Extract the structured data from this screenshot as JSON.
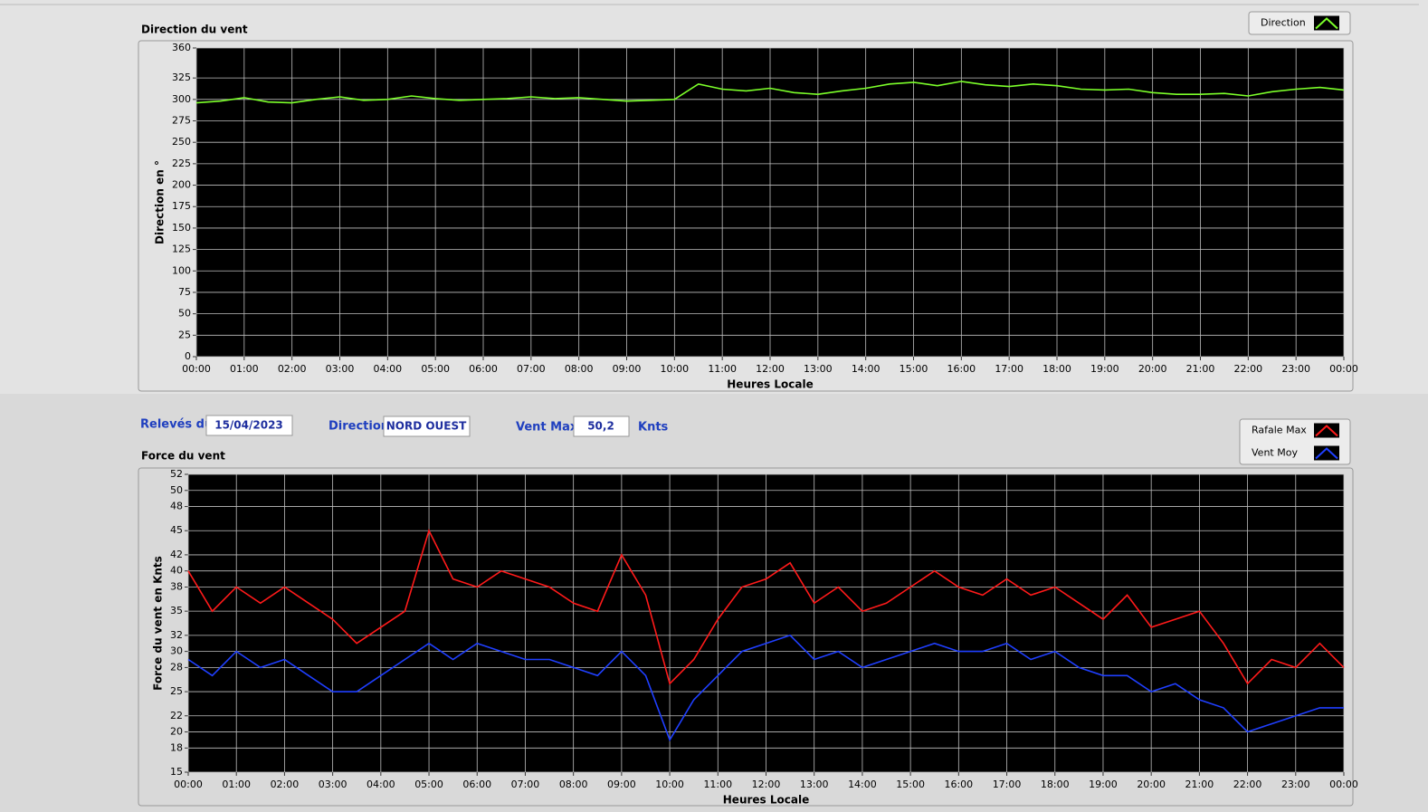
{
  "chart_data": [
    {
      "type": "line",
      "title": "Direction du vent",
      "y_label": "Direction en °",
      "x_label": "Heures Locale",
      "x": [
        0,
        0.5,
        1,
        1.5,
        2,
        2.5,
        3,
        3.5,
        4,
        4.5,
        5,
        5.5,
        6,
        6.5,
        7,
        7.5,
        8,
        8.5,
        9,
        9.5,
        10,
        10.5,
        11,
        11.5,
        12,
        12.5,
        13,
        13.5,
        14,
        14.5,
        15,
        15.5,
        16,
        16.5,
        17,
        17.5,
        18,
        18.5,
        19,
        19.5,
        20,
        20.5,
        21,
        21.5,
        22,
        22.5,
        23,
        23.5,
        24
      ],
      "xlim": [
        0,
        24
      ],
      "xticks": [
        {
          "value": 0,
          "label": "00:00"
        },
        {
          "value": 1,
          "label": "01:00"
        },
        {
          "value": 2,
          "label": "02:00"
        },
        {
          "value": 3,
          "label": "03:00"
        },
        {
          "value": 4,
          "label": "04:00"
        },
        {
          "value": 5,
          "label": "05:00"
        },
        {
          "value": 6,
          "label": "06:00"
        },
        {
          "value": 7,
          "label": "07:00"
        },
        {
          "value": 8,
          "label": "08:00"
        },
        {
          "value": 9,
          "label": "09:00"
        },
        {
          "value": 10,
          "label": "10:00"
        },
        {
          "value": 11,
          "label": "11:00"
        },
        {
          "value": 12,
          "label": "12:00"
        },
        {
          "value": 13,
          "label": "13:00"
        },
        {
          "value": 14,
          "label": "14:00"
        },
        {
          "value": 15,
          "label": "15:00"
        },
        {
          "value": 16,
          "label": "16:00"
        },
        {
          "value": 17,
          "label": "17:00"
        },
        {
          "value": 18,
          "label": "18:00"
        },
        {
          "value": 19,
          "label": "19:00"
        },
        {
          "value": 20,
          "label": "20:00"
        },
        {
          "value": 21,
          "label": "21:00"
        },
        {
          "value": 22,
          "label": "22:00"
        },
        {
          "value": 23,
          "label": "23:00"
        },
        {
          "value": 24,
          "label": "00:00"
        }
      ],
      "ylim": [
        0,
        360
      ],
      "yticks": [
        0,
        25,
        50,
        75,
        100,
        125,
        150,
        175,
        200,
        225,
        250,
        275,
        300,
        325,
        360
      ],
      "grid": true,
      "plot_background": "#000000",
      "series": [
        {
          "name": "Direction",
          "color": "#7cff2a",
          "values": [
            296,
            298,
            302,
            297,
            296,
            300,
            303,
            299,
            300,
            304,
            301,
            299,
            300,
            301,
            303,
            301,
            302,
            300,
            298,
            299,
            300,
            318,
            312,
            310,
            313,
            308,
            306,
            310,
            313,
            318,
            320,
            316,
            321,
            317,
            315,
            318,
            316,
            312,
            311,
            312,
            308,
            306,
            306,
            307,
            304,
            309,
            312,
            314,
            311
          ]
        }
      ]
    },
    {
      "type": "line",
      "title": "Force du vent",
      "y_label": "Force du vent en Knts",
      "x_label": "Heures Locale",
      "x": [
        0,
        0.5,
        1,
        1.5,
        2,
        2.5,
        3,
        3.5,
        4,
        4.5,
        5,
        5.5,
        6,
        6.5,
        7,
        7.5,
        8,
        8.5,
        9,
        9.5,
        10,
        10.5,
        11,
        11.5,
        12,
        12.5,
        13,
        13.5,
        14,
        14.5,
        15,
        15.5,
        16,
        16.5,
        17,
        17.5,
        18,
        18.5,
        19,
        19.5,
        20,
        20.5,
        21,
        21.5,
        22,
        22.5,
        23,
        23.5,
        24
      ],
      "xlim": [
        0,
        24
      ],
      "xticks": [
        {
          "value": 0,
          "label": "00:00"
        },
        {
          "value": 1,
          "label": "01:00"
        },
        {
          "value": 2,
          "label": "02:00"
        },
        {
          "value": 3,
          "label": "03:00"
        },
        {
          "value": 4,
          "label": "04:00"
        },
        {
          "value": 5,
          "label": "05:00"
        },
        {
          "value": 6,
          "label": "06:00"
        },
        {
          "value": 7,
          "label": "07:00"
        },
        {
          "value": 8,
          "label": "08:00"
        },
        {
          "value": 9,
          "label": "09:00"
        },
        {
          "value": 10,
          "label": "10:00"
        },
        {
          "value": 11,
          "label": "11:00"
        },
        {
          "value": 12,
          "label": "12:00"
        },
        {
          "value": 13,
          "label": "13:00"
        },
        {
          "value": 14,
          "label": "14:00"
        },
        {
          "value": 15,
          "label": "15:00"
        },
        {
          "value": 16,
          "label": "16:00"
        },
        {
          "value": 17,
          "label": "17:00"
        },
        {
          "value": 18,
          "label": "18:00"
        },
        {
          "value": 19,
          "label": "19:00"
        },
        {
          "value": 20,
          "label": "20:00"
        },
        {
          "value": 21,
          "label": "21:00"
        },
        {
          "value": 22,
          "label": "22:00"
        },
        {
          "value": 23,
          "label": "23:00"
        },
        {
          "value": 24,
          "label": "00:00"
        }
      ],
      "ylim": [
        15,
        52
      ],
      "yticks": [
        15,
        18,
        20,
        22,
        25,
        28,
        30,
        32,
        35,
        38,
        40,
        42,
        45,
        48,
        50,
        52
      ],
      "grid": true,
      "plot_background": "#000000",
      "series": [
        {
          "name": "Rafale Max",
          "color": "#ff1a1a",
          "values": [
            40,
            35,
            38,
            36,
            38,
            36,
            34,
            31,
            33,
            35,
            45,
            39,
            38,
            40,
            39,
            38,
            36,
            35,
            42,
            37,
            26,
            29,
            34,
            38,
            39,
            41,
            36,
            38,
            35,
            36,
            38,
            40,
            38,
            37,
            39,
            37,
            38,
            36,
            34,
            37,
            33,
            34,
            35,
            31,
            26,
            29,
            28,
            31,
            28
          ]
        },
        {
          "name": "Vent Moy",
          "color": "#1f3fff",
          "values": [
            29,
            27,
            30,
            28,
            29,
            27,
            25,
            25,
            27,
            29,
            31,
            29,
            31,
            30,
            29,
            29,
            28,
            27,
            30,
            27,
            19,
            24,
            27,
            30,
            31,
            32,
            29,
            30,
            28,
            29,
            30,
            31,
            30,
            30,
            31,
            29,
            30,
            28,
            27,
            27,
            25,
            26,
            24,
            23,
            20,
            21,
            22,
            23,
            23
          ]
        }
      ]
    }
  ],
  "form": {
    "releves_label": "Relevés du",
    "releves_value": "15/04/2023",
    "direction_label": "Direction",
    "direction_value": "NORD OUEST",
    "ventmax_label": "Vent Max",
    "ventmax_value": "50,2",
    "ventmax_unit": "Knts"
  }
}
